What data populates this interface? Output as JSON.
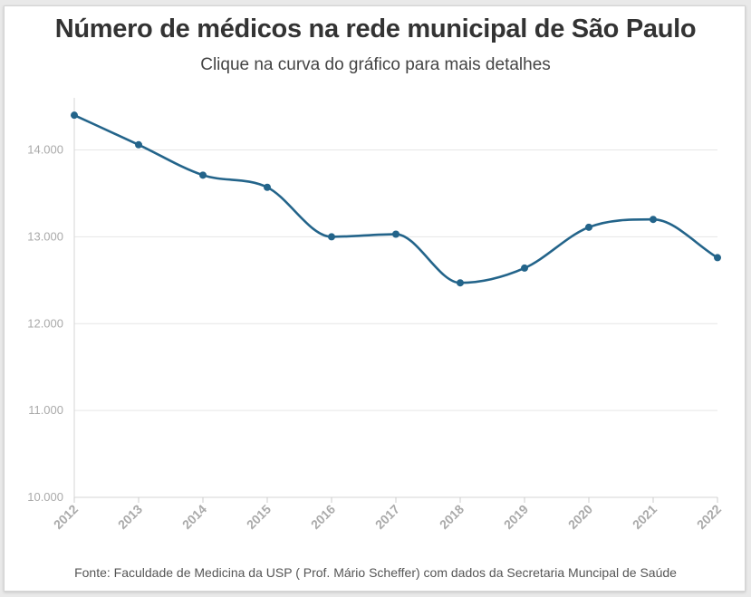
{
  "title": "Número de médicos na rede municipal de São Paulo",
  "subtitle": "Clique na curva do gráfico para mais detalhes",
  "source": "Fonte: Faculdade de Medicina da USP ( Prof. Mário Scheffer) com dados da Secretaria Muncipal de Saúde",
  "chart_data": {
    "type": "line",
    "x": [
      "2012",
      "2013",
      "2014",
      "2015",
      "2016",
      "2017",
      "2018",
      "2019",
      "2020",
      "2021",
      "2022"
    ],
    "series": [
      {
        "values": [
          14400,
          14060,
          13710,
          13570,
          13000,
          13030,
          12470,
          12640,
          13110,
          13200,
          12760
        ],
        "color": "#23648a"
      }
    ],
    "ylim": [
      10000,
      14600
    ],
    "yticks": [
      10000,
      11000,
      12000,
      13000,
      14000
    ],
    "ytick_labels": [
      "10.000",
      "11.000",
      "12.000",
      "13.000",
      "14.000"
    ],
    "curve": "smooth",
    "grid": true,
    "legend": "none"
  }
}
